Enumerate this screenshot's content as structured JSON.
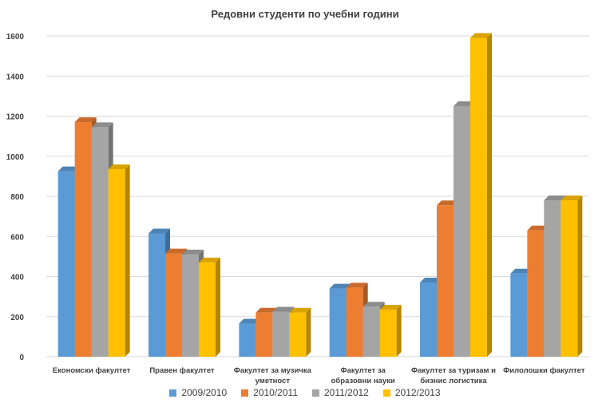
{
  "chart_data": {
    "type": "bar",
    "title": "Редовни студенти по учебни години",
    "xlabel": "",
    "ylabel": "",
    "ylim": [
      0,
      1600
    ],
    "yticks": [
      0,
      200,
      400,
      600,
      800,
      1000,
      1200,
      1400,
      1600
    ],
    "grid": true,
    "legend_position": "bottom",
    "categories": [
      [
        "Економски факултет"
      ],
      [
        "Правен факултет"
      ],
      [
        "Факултет за музичка",
        "уметност"
      ],
      [
        "Факултет за",
        "образовни науки"
      ],
      [
        "Факултет за туризам и",
        "бизнис логистика"
      ],
      [
        "Филолошки факултет"
      ]
    ],
    "series": [
      {
        "name": "2009/2010",
        "color": "#5b9bd5",
        "values": [
          925,
          615,
          165,
          340,
          370,
          415
        ]
      },
      {
        "name": "2010/2011",
        "color": "#ed7d31",
        "values": [
          1170,
          515,
          220,
          345,
          755,
          630
        ]
      },
      {
        "name": "2011/2012",
        "color": "#a5a5a5",
        "values": [
          1145,
          510,
          225,
          250,
          1250,
          780
        ]
      },
      {
        "name": "2012/2013",
        "color": "#ffc000",
        "values": [
          935,
          470,
          220,
          235,
          1590,
          780
        ]
      }
    ]
  }
}
